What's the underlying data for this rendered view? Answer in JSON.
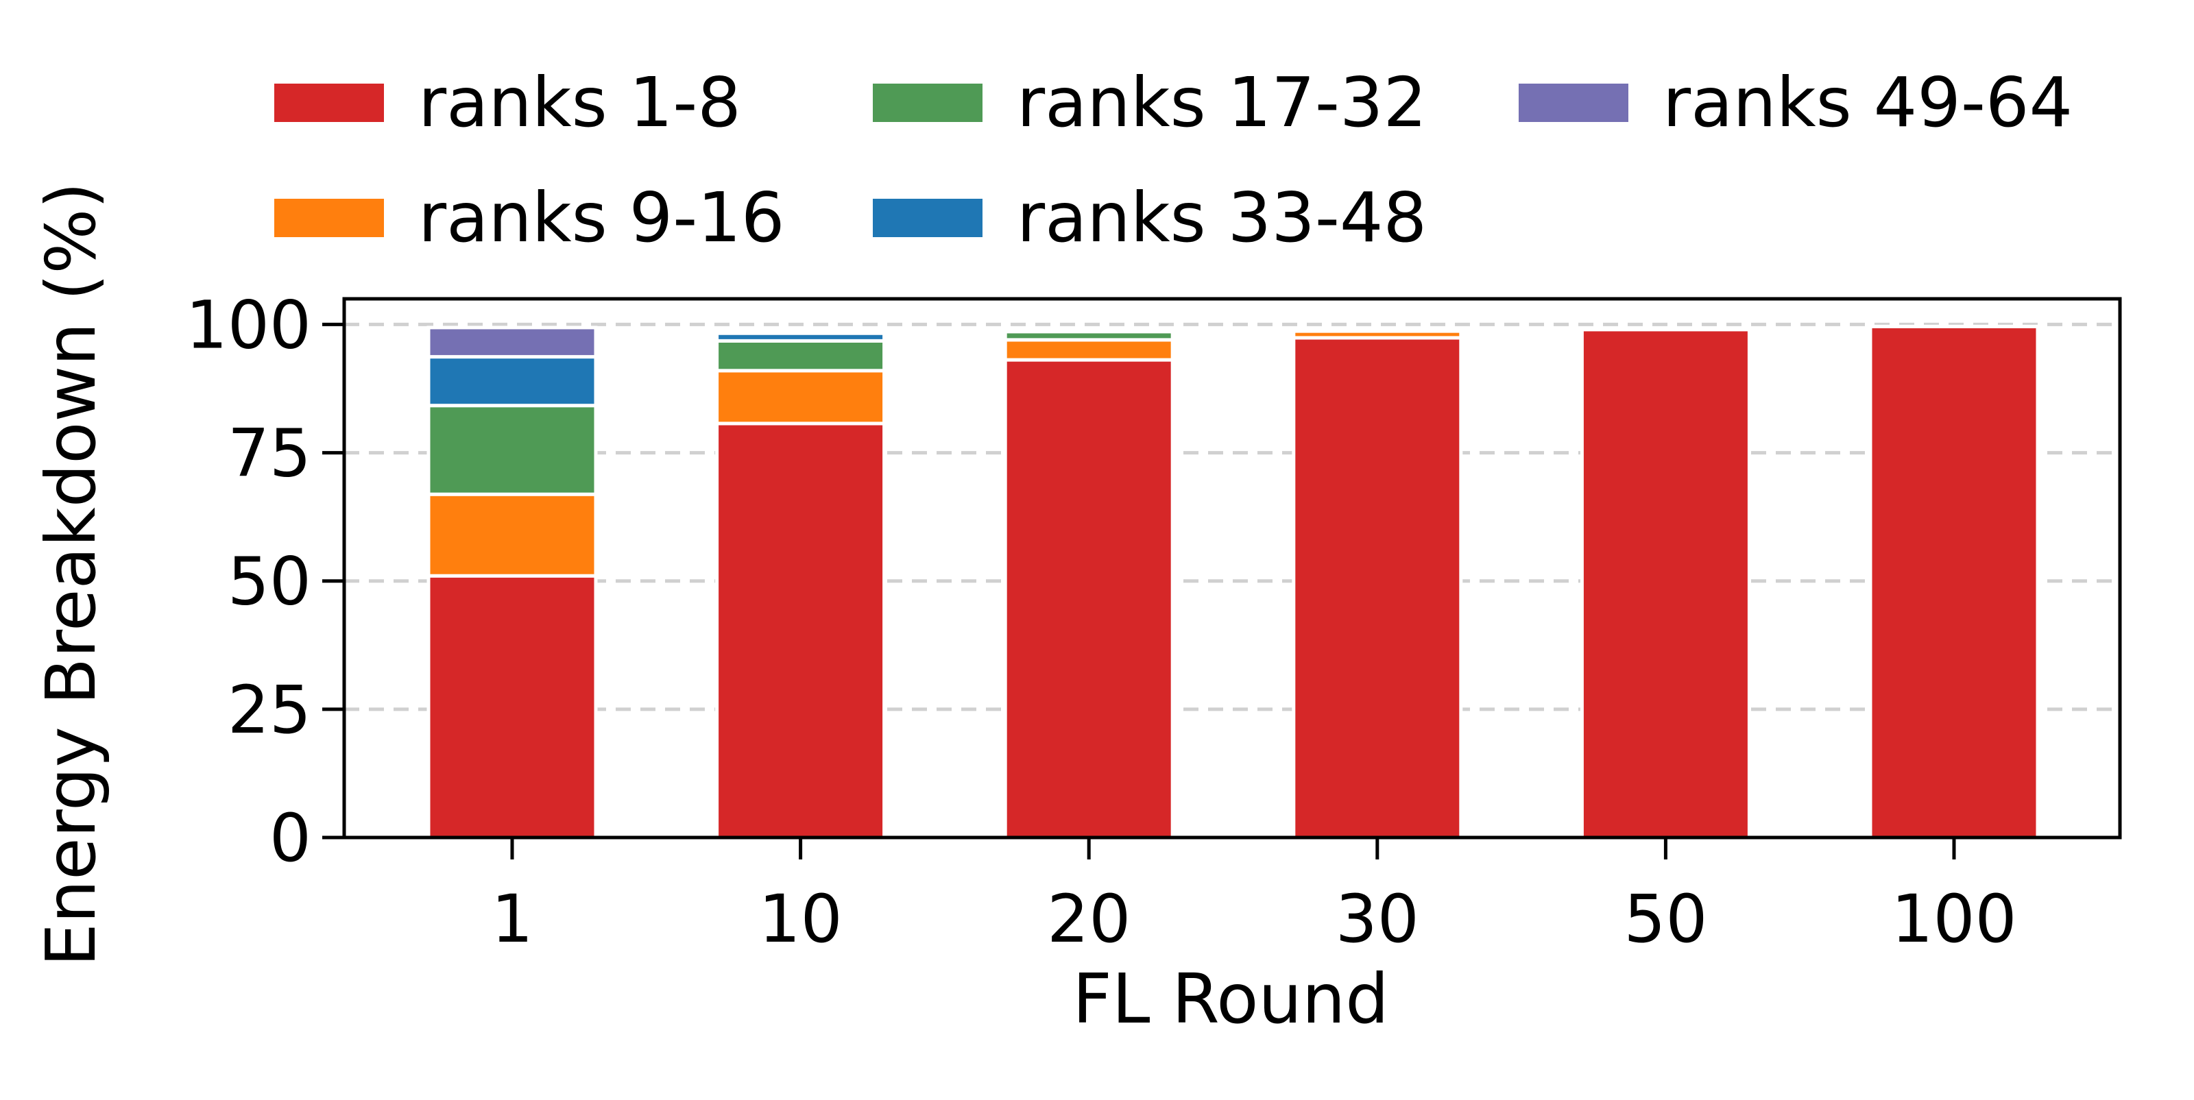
{
  "chart_data": {
    "type": "bar",
    "stacked": true,
    "xlabel": "FL Round",
    "ylabel": "Energy Breakdown (%)",
    "categories": [
      "1",
      "10",
      "20",
      "30",
      "50",
      "100"
    ],
    "ylim": [
      0,
      105
    ],
    "yticks": [
      0,
      25,
      50,
      75,
      100
    ],
    "grid": "horizontal dashed",
    "legend_position": "top",
    "series": [
      {
        "name": "ranks 1-8",
        "color": "#d62728",
        "values": [
          51.0,
          80.7,
          93.1,
          97.4,
          99.0,
          99.6
        ]
      },
      {
        "name": "ranks 9-16",
        "color": "#ff7f0e",
        "values": [
          15.9,
          10.3,
          3.9,
          1.3,
          0.0,
          0.0
        ]
      },
      {
        "name": "ranks 17-32",
        "color": "#4f9a55",
        "values": [
          17.3,
          5.8,
          1.6,
          0.0,
          0.0,
          0.0
        ]
      },
      {
        "name": "ranks 33-48",
        "color": "#1f77b4",
        "values": [
          9.5,
          1.5,
          0.0,
          0.0,
          0.0,
          0.0
        ]
      },
      {
        "name": "ranks 49-64",
        "color": "#7570b3",
        "values": [
          5.7,
          0.3,
          0.0,
          0.0,
          0.0,
          0.0
        ]
      }
    ]
  }
}
